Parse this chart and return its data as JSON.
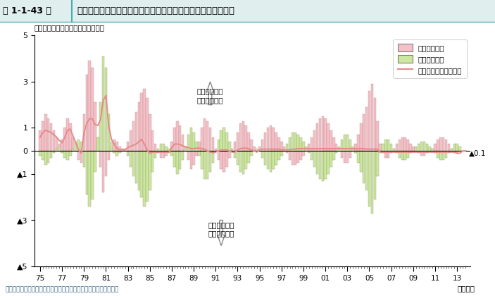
{
  "title_fig": "第 1-1-43 図",
  "title_main": "価格転嫁力指標上昇率の推移とその変動要因（大企業製造業）",
  "ylabel_note": "（前期比、後方４期移動平均、％）",
  "xlabel_note": "（年期）",
  "source": "資料：日本銀行「全国企業短期経済観測調査」、「企業物価指数」",
  "legend1": "販売価格要因",
  "legend2": "仕入価格要因",
  "legend3": "価格転嫁力指標上昇率",
  "annotation_up1": "販売価格上昇",
  "annotation_up2": "仕入価格下落",
  "annotation_down1": "販売価格下落",
  "annotation_down2": "仕入価格上昇",
  "last_value_label": "▲0.1",
  "bar_color_sales": "#f5c0c8",
  "bar_color_input": "#cce8a0",
  "bar_edge_sales": "#b08888",
  "bar_edge_input": "#889060",
  "line_color": "#e88888",
  "header_bg": "#e0eeee",
  "header_border": "#4aacac",
  "ylim_min": -5,
  "ylim_max": 5,
  "start_year": 1975,
  "end_year": 2013,
  "sales_data": [
    0.9,
    1.3,
    1.6,
    1.4,
    1.2,
    0.9,
    0.6,
    0.3,
    0.5,
    1.0,
    1.4,
    1.2,
    0.6,
    0.0,
    -0.4,
    -0.5,
    1.6,
    3.3,
    3.9,
    3.6,
    2.1,
    0.6,
    -0.7,
    -1.8,
    -1.1,
    -0.4,
    0.2,
    0.5,
    0.4,
    0.2,
    0.1,
    0.0,
    0.4,
    0.9,
    1.3,
    1.7,
    2.1,
    2.5,
    2.7,
    2.3,
    1.6,
    0.9,
    0.3,
    -0.1,
    -0.3,
    -0.3,
    -0.2,
    -0.1,
    0.4,
    1.0,
    1.3,
    1.1,
    0.7,
    0.2,
    -0.4,
    -0.8,
    -0.6,
    -0.2,
    0.4,
    1.0,
    1.4,
    1.3,
    1.0,
    0.6,
    0.1,
    -0.4,
    -0.8,
    -0.9,
    -0.7,
    -0.3,
    0.1,
    0.4,
    0.8,
    1.2,
    1.3,
    1.1,
    0.8,
    0.5,
    0.2,
    0.0,
    0.2,
    0.5,
    0.8,
    1.0,
    1.1,
    1.0,
    0.8,
    0.6,
    0.4,
    0.2,
    -0.1,
    -0.4,
    -0.6,
    -0.6,
    -0.5,
    -0.4,
    -0.2,
    0.0,
    0.3,
    0.6,
    0.9,
    1.2,
    1.4,
    1.5,
    1.4,
    1.2,
    0.9,
    0.6,
    0.3,
    0.0,
    -0.3,
    -0.5,
    -0.5,
    -0.3,
    0.0,
    0.3,
    0.7,
    1.2,
    1.6,
    1.9,
    2.6,
    2.9,
    2.3,
    1.3,
    0.3,
    -0.1,
    -0.3,
    -0.3,
    -0.1,
    0.1,
    0.3,
    0.5,
    0.6,
    0.6,
    0.5,
    0.3,
    0.2,
    0.0,
    -0.1,
    -0.2,
    -0.2,
    -0.1,
    0.0,
    0.1,
    0.3,
    0.5,
    0.6,
    0.6,
    0.5,
    0.3,
    0.1,
    -0.1,
    -0.1,
    0.0
  ],
  "input_data": [
    -0.2,
    -0.4,
    -0.6,
    -0.5,
    -0.3,
    -0.1,
    0.1,
    0.2,
    -0.1,
    -0.3,
    -0.4,
    -0.2,
    0.1,
    0.4,
    0.5,
    0.4,
    -0.7,
    -1.9,
    -2.4,
    -2.1,
    -0.9,
    0.6,
    2.1,
    4.1,
    3.6,
    1.6,
    0.4,
    -0.1,
    -0.2,
    -0.1,
    0.0,
    0.1,
    -0.2,
    -0.7,
    -1.1,
    -1.4,
    -1.7,
    -2.0,
    -2.4,
    -2.2,
    -1.7,
    -0.9,
    -0.3,
    0.1,
    0.3,
    0.3,
    0.2,
    0.1,
    -0.2,
    -0.7,
    -1.0,
    -0.8,
    -0.4,
    0.1,
    0.7,
    1.0,
    0.8,
    0.4,
    -0.2,
    -0.8,
    -1.2,
    -1.2,
    -0.9,
    -0.5,
    0.0,
    0.5,
    0.9,
    1.0,
    0.8,
    0.4,
    0.0,
    -0.3,
    -0.6,
    -0.9,
    -1.0,
    -0.8,
    -0.5,
    -0.2,
    0.0,
    0.1,
    0.0,
    -0.3,
    -0.6,
    -0.8,
    -0.9,
    -0.8,
    -0.6,
    -0.4,
    -0.2,
    0.0,
    0.3,
    0.6,
    0.8,
    0.8,
    0.7,
    0.6,
    0.4,
    0.2,
    -0.1,
    -0.4,
    -0.7,
    -1.0,
    -1.2,
    -1.3,
    -1.2,
    -1.0,
    -0.7,
    -0.4,
    -0.1,
    0.2,
    0.5,
    0.7,
    0.7,
    0.5,
    0.2,
    -0.1,
    -0.5,
    -0.9,
    -1.4,
    -1.7,
    -2.4,
    -2.7,
    -2.1,
    -1.1,
    -0.1,
    0.3,
    0.5,
    0.5,
    0.3,
    0.1,
    -0.1,
    -0.3,
    -0.4,
    -0.4,
    -0.3,
    -0.1,
    0.0,
    0.2,
    0.3,
    0.4,
    0.4,
    0.3,
    0.2,
    0.1,
    -0.1,
    -0.3,
    -0.4,
    -0.4,
    -0.3,
    -0.1,
    0.1,
    0.3,
    0.3,
    0.2
  ],
  "line_data": [
    0.6,
    0.8,
    0.9,
    0.85,
    0.8,
    0.7,
    0.6,
    0.45,
    0.35,
    0.6,
    0.9,
    0.95,
    0.65,
    0.35,
    0.05,
    -0.1,
    0.8,
    1.2,
    1.4,
    1.4,
    1.15,
    1.1,
    1.35,
    2.2,
    2.4,
    1.1,
    0.5,
    0.3,
    0.1,
    0.05,
    0.05,
    0.05,
    0.15,
    0.2,
    0.25,
    0.3,
    0.4,
    0.5,
    0.3,
    0.05,
    -0.1,
    -0.05,
    -0.05,
    -0.05,
    -0.05,
    -0.05,
    -0.05,
    -0.05,
    0.15,
    0.3,
    0.3,
    0.28,
    0.22,
    0.18,
    0.15,
    0.1,
    0.1,
    0.12,
    0.12,
    0.1,
    0.08,
    0.0,
    -0.05,
    -0.08,
    -0.05,
    0.0,
    0.05,
    0.05,
    0.05,
    0.0,
    -0.05,
    -0.05,
    0.05,
    0.1,
    0.12,
    0.12,
    0.1,
    0.05,
    0.0,
    -0.05,
    0.05,
    0.08,
    0.08,
    0.08,
    0.08,
    0.08,
    0.08,
    0.08,
    0.05,
    0.05,
    0.05,
    0.05,
    0.08,
    0.08,
    0.1,
    0.1,
    0.1,
    0.1,
    0.1,
    0.1,
    0.1,
    0.1,
    0.1,
    0.1,
    0.1,
    0.1,
    0.1,
    0.1,
    0.1,
    0.1,
    0.1,
    0.1,
    0.1,
    0.1,
    0.1,
    0.1,
    0.1,
    0.1,
    0.1,
    0.08,
    0.08,
    0.08,
    0.08,
    0.08,
    -0.05,
    -0.05,
    -0.05,
    -0.05,
    -0.05,
    -0.05,
    -0.05,
    -0.05,
    -0.05,
    -0.05,
    -0.05,
    -0.05,
    -0.05,
    -0.05,
    -0.05,
    -0.05,
    -0.05,
    -0.05,
    -0.05,
    -0.05,
    -0.05,
    -0.05,
    -0.05,
    -0.05,
    -0.05,
    -0.05,
    -0.05,
    -0.05,
    -0.1,
    -0.1
  ]
}
